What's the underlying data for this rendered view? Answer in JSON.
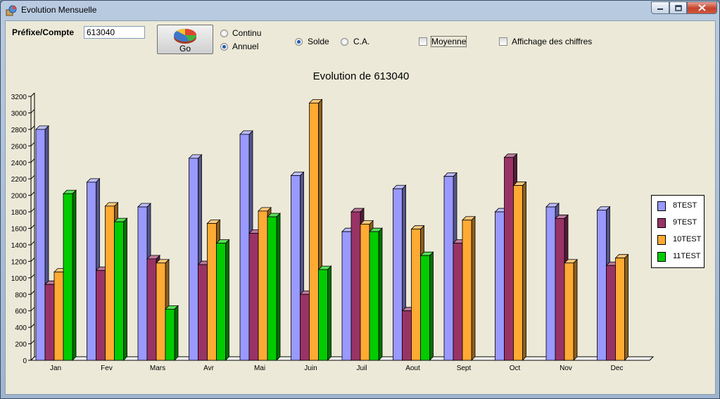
{
  "window": {
    "title": "Evolution Mensuelle",
    "app_icon": "app-icon",
    "controls": [
      "minimize-icon",
      "maximize-icon",
      "close-icon"
    ]
  },
  "toolbar": {
    "prefix_label": "Préfixe/Compte",
    "account_value": "613040",
    "go_label": "Go",
    "go_icon": "pie-chart-icon",
    "mode_options": [
      {
        "label": "Continu",
        "selected": false
      },
      {
        "label": "Annuel",
        "selected": true
      }
    ],
    "type_options": [
      {
        "label": "Solde",
        "selected": true
      },
      {
        "label": "C.A.",
        "selected": false
      }
    ],
    "moyenne_label": "Moyenne",
    "moyenne_checked": false,
    "affichage_label": "Affichage des chiffres",
    "affichage_checked": false
  },
  "chart_data": {
    "type": "bar",
    "title": "Evolution de 613040",
    "categories": [
      "Jan",
      "Fev",
      "Mars",
      "Avr",
      "Mai",
      "Juin",
      "Juil",
      "Aout",
      "Sept",
      "Oct",
      "Nov",
      "Dec"
    ],
    "ylim": [
      0,
      3200
    ],
    "yticks": [
      0,
      200,
      400,
      600,
      800,
      1000,
      1200,
      1400,
      1600,
      1800,
      2000,
      2200,
      2400,
      2600,
      2800,
      3000,
      3200
    ],
    "legend_position": "right",
    "series": [
      {
        "name": "8TEST",
        "color": "#9999ff",
        "values": [
          2800,
          2160,
          1860,
          2450,
          2740,
          2240,
          1560,
          2080,
          2230,
          1800,
          1860,
          1820
        ]
      },
      {
        "name": "9TEST",
        "color": "#993366",
        "values": [
          920,
          1090,
          1230,
          1160,
          1540,
          800,
          1800,
          600,
          1420,
          2460,
          1720,
          1150
        ]
      },
      {
        "name": "10TEST",
        "color": "#ffaa33",
        "values": [
          1070,
          1870,
          1180,
          1660,
          1810,
          3120,
          1650,
          1590,
          1700,
          2120,
          1180,
          1240
        ]
      },
      {
        "name": "11TEST",
        "color": "#00cc00",
        "values": [
          2020,
          1680,
          620,
          1420,
          1740,
          1100,
          1560,
          1270,
          null,
          null,
          null,
          null
        ]
      }
    ]
  }
}
